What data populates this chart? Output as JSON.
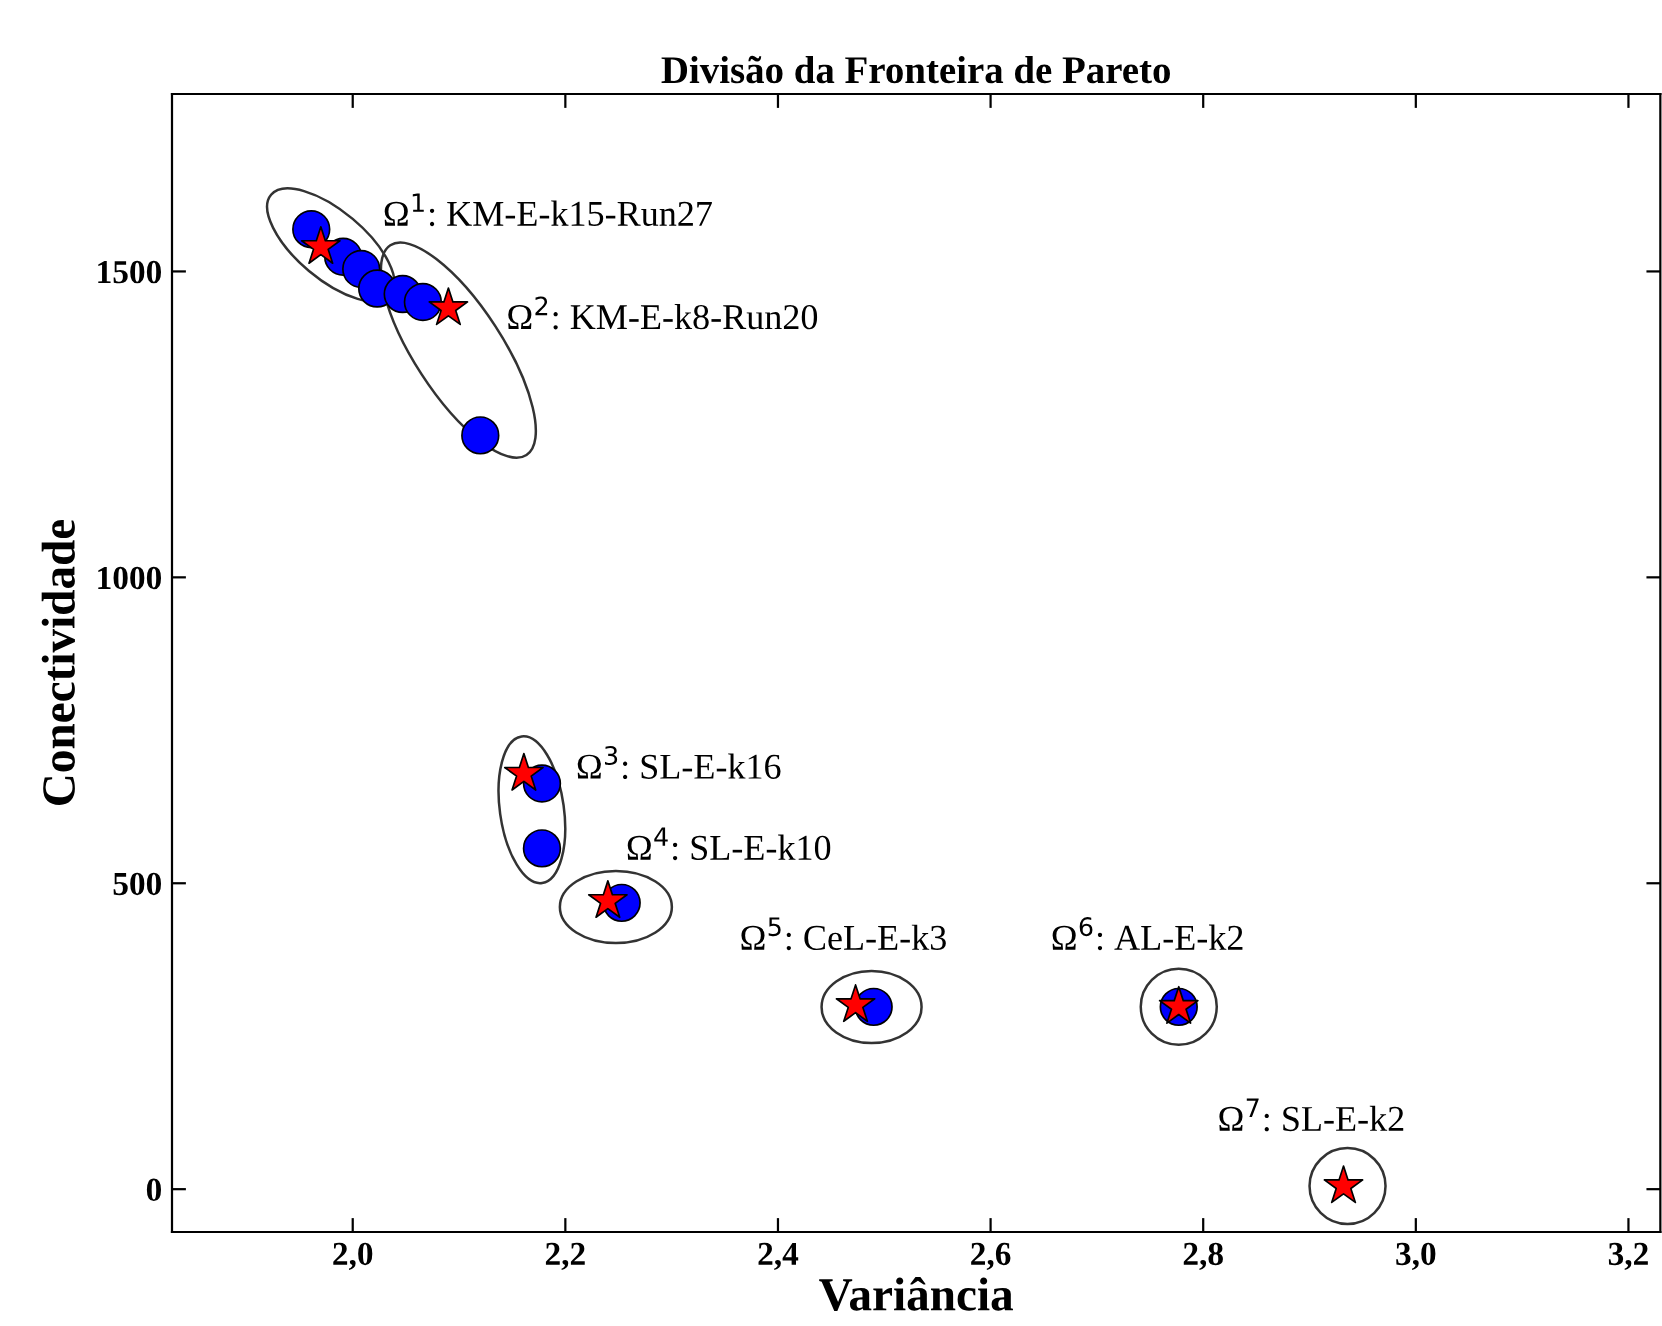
{
  "chart_data": {
    "type": "scatter",
    "title": "Divisão da Fronteira de Pareto",
    "xlabel": "Variância",
    "ylabel": "Conectividade",
    "xlim": [
      1.83,
      3.23
    ],
    "ylim": [
      -70,
      1790
    ],
    "xticks": [
      {
        "value": 2.0,
        "label": "2,0"
      },
      {
        "value": 2.2,
        "label": "2,2"
      },
      {
        "value": 2.4,
        "label": "2,4"
      },
      {
        "value": 2.6,
        "label": "2,6"
      },
      {
        "value": 2.8,
        "label": "2,8"
      },
      {
        "value": 3.0,
        "label": "3,0"
      },
      {
        "value": 3.2,
        "label": "3,2"
      }
    ],
    "yticks": [
      0,
      500,
      1000,
      1500
    ],
    "grid": false,
    "legend": false,
    "series": [
      {
        "color": "#0000ff",
        "marker": "circle",
        "x": [
          1.961,
          1.991,
          2.008,
          2.023,
          2.047,
          2.066,
          2.12,
          2.178,
          2.178,
          2.253,
          2.49,
          2.777
        ],
        "values": [
          1569,
          1524,
          1504,
          1472,
          1463,
          1450,
          1232,
          663,
          557,
          468,
          298,
          298
        ]
      },
      {
        "color": "#ff0000",
        "marker": "star",
        "x": [
          1.97,
          2.09,
          2.161,
          2.24,
          2.473,
          2.777,
          2.932
        ],
        "values": [
          1540,
          1440,
          679,
          471,
          301,
          298,
          5
        ]
      }
    ],
    "annotations": [
      {
        "text": "Ω$^{1}$: KM-E-k15-Run27",
        "x": 1.97,
        "y": 1540
      },
      {
        "text": "Ω$^{2}$: KM-E-k8-Run20",
        "x": 2.09,
        "y": 1440
      },
      {
        "text": "Ω$^{3}$: SL-E-k16",
        "x": 2.161,
        "y": 679
      },
      {
        "text": "Ω$^{4}$: SL-E-k10",
        "x": 2.24,
        "y": 471
      },
      {
        "text": "Ω$^{5}$: CeL-E-k3",
        "x": 2.473,
        "y": 301
      },
      {
        "text": "Ω$^{6}$: AL-E-k2",
        "x": 2.777,
        "y": 298
      },
      {
        "text": "Ω$^{7}$: SL-E-k2",
        "x": 2.932,
        "y": 5
      }
    ]
  }
}
